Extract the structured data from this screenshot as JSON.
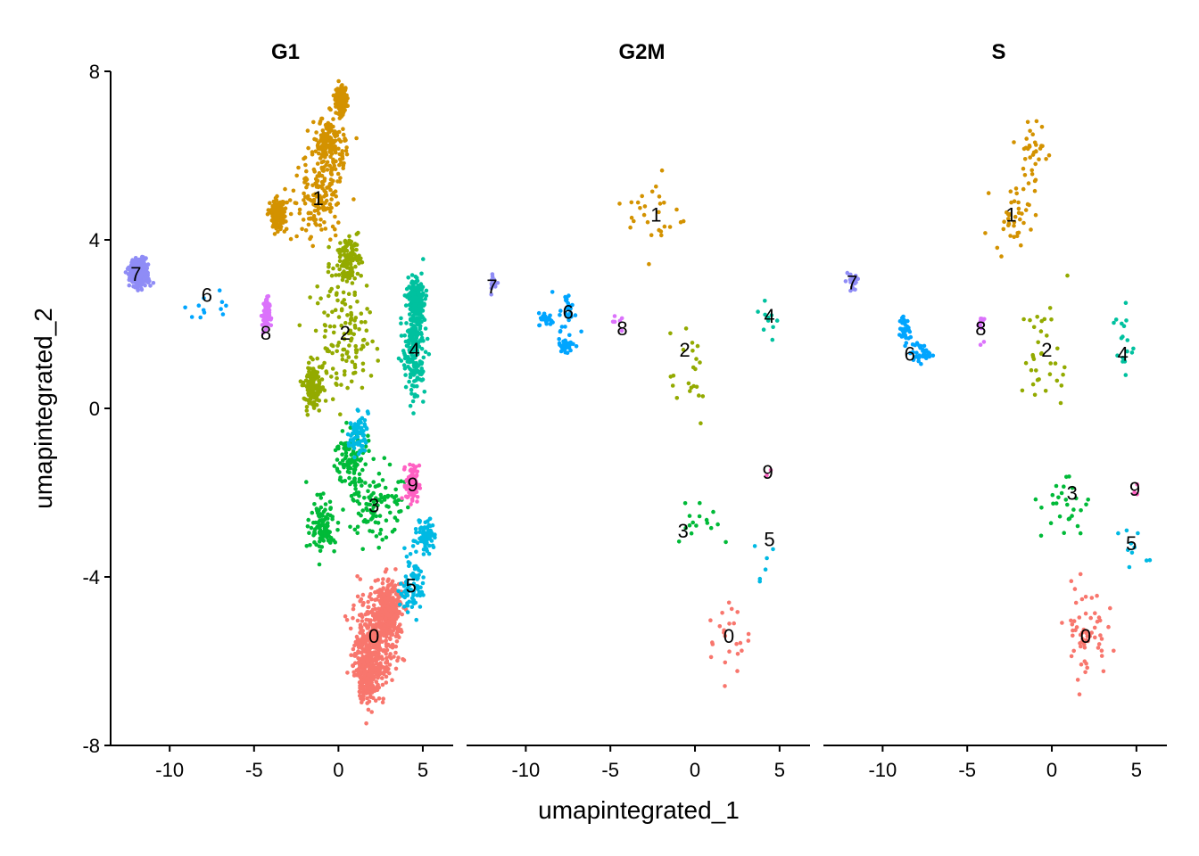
{
  "chart_data": {
    "type": "scatter",
    "xlabel": "umapintegrated_1",
    "ylabel": "umapintegrated_2",
    "xlim": [
      -13.5,
      6.8
    ],
    "ylim": [
      -8.0,
      8.0
    ],
    "x_ticks": [
      -10,
      -5,
      0,
      5
    ],
    "x_tick_labels": [
      "-10",
      "-5",
      "0",
      "5"
    ],
    "y_ticks": [
      -8,
      -4,
      0,
      4,
      8
    ],
    "y_tick_labels": [
      "-8",
      "-4",
      "0",
      "4",
      "8"
    ],
    "grid": false,
    "cluster_colors": {
      "0": "#F8766D",
      "1": "#D39200",
      "2": "#93AA00",
      "3": "#00BA38",
      "4": "#00C19F",
      "5": "#00B9E3",
      "6": "#00A5FF",
      "7": "#8F8CF6",
      "8": "#DB72FB",
      "9": "#FF61C3"
    },
    "panels": [
      {
        "title": "G1",
        "clusters": [
          {
            "id": "0",
            "label_x": 2.1,
            "label_y": -5.4,
            "n": 900,
            "blobs": [
              [
                2.1,
                -5.4,
                1.2,
                0.9
              ],
              [
                1.8,
                -6.2,
                0.8,
                0.7
              ],
              [
                3.0,
                -4.8,
                0.7,
                0.6
              ]
            ]
          },
          {
            "id": "1",
            "label_x": -1.2,
            "label_y": 5.0,
            "n": 650,
            "blobs": [
              [
                -1.2,
                5.0,
                1.4,
                0.9
              ],
              [
                -0.5,
                6.3,
                0.8,
                0.6
              ],
              [
                -3.6,
                4.6,
                0.4,
                0.3
              ],
              [
                0.2,
                7.3,
                0.3,
                0.3
              ]
            ]
          },
          {
            "id": "2",
            "label_x": 0.4,
            "label_y": 1.8,
            "n": 380,
            "blobs": [
              [
                0.4,
                1.8,
                1.6,
                1.2
              ],
              [
                0.6,
                3.5,
                0.7,
                0.5
              ],
              [
                -1.5,
                0.5,
                0.5,
                0.5
              ]
            ]
          },
          {
            "id": "3",
            "label_x": 2.1,
            "label_y": -2.3,
            "n": 320,
            "blobs": [
              [
                2.1,
                -2.3,
                1.4,
                0.9
              ],
              [
                0.8,
                -1.2,
                0.9,
                0.6
              ],
              [
                -1.0,
                -2.8,
                0.7,
                0.6
              ]
            ]
          },
          {
            "id": "4",
            "label_x": 4.5,
            "label_y": 1.4,
            "n": 420,
            "blobs": [
              [
                4.5,
                1.4,
                0.6,
                1.0
              ],
              [
                4.6,
                2.6,
                0.4,
                0.4
              ]
            ]
          },
          {
            "id": "5",
            "label_x": 4.3,
            "label_y": -4.2,
            "n": 220,
            "blobs": [
              [
                4.3,
                -4.2,
                0.6,
                0.7
              ],
              [
                5.2,
                -3.0,
                0.5,
                0.4
              ],
              [
                1.2,
                -0.6,
                0.5,
                0.4
              ]
            ]
          },
          {
            "id": "6",
            "label_x": -7.8,
            "label_y": 2.7,
            "n": 12,
            "blobs": [
              [
                -7.8,
                2.5,
                1.2,
                0.5
              ]
            ]
          },
          {
            "id": "7",
            "label_x": -12.0,
            "label_y": 3.2,
            "n": 320,
            "blobs": [
              [
                -11.8,
                3.2,
                0.5,
                0.3
              ]
            ]
          },
          {
            "id": "8",
            "label_x": -4.3,
            "label_y": 1.8,
            "n": 70,
            "blobs": [
              [
                -4.3,
                2.2,
                0.2,
                0.4
              ]
            ]
          },
          {
            "id": "9",
            "label_x": 4.4,
            "label_y": -1.8,
            "n": 90,
            "blobs": [
              [
                4.4,
                -1.8,
                0.35,
                0.4
              ]
            ]
          }
        ]
      },
      {
        "title": "G2M",
        "clusters": [
          {
            "id": "0",
            "label_x": 2.0,
            "label_y": -5.4,
            "n": 24,
            "blobs": [
              [
                2.0,
                -5.4,
                1.2,
                0.9
              ]
            ]
          },
          {
            "id": "1",
            "label_x": -2.3,
            "label_y": 4.6,
            "n": 28,
            "blobs": [
              [
                -2.3,
                4.6,
                1.5,
                0.9
              ]
            ]
          },
          {
            "id": "2",
            "label_x": -0.6,
            "label_y": 1.4,
            "n": 22,
            "blobs": [
              [
                -0.6,
                1.0,
                1.5,
                1.3
              ]
            ]
          },
          {
            "id": "3",
            "label_x": -0.7,
            "label_y": -2.9,
            "n": 16,
            "blobs": [
              [
                0.3,
                -2.6,
                2.0,
                0.6
              ]
            ]
          },
          {
            "id": "4",
            "label_x": 4.4,
            "label_y": 2.2,
            "n": 10,
            "blobs": [
              [
                4.3,
                2.0,
                0.6,
                0.6
              ]
            ]
          },
          {
            "id": "5",
            "label_x": 4.4,
            "label_y": -3.1,
            "n": 6,
            "blobs": [
              [
                4.2,
                -3.5,
                0.6,
                0.8
              ]
            ]
          },
          {
            "id": "6",
            "label_x": -7.5,
            "label_y": 2.3,
            "n": 85,
            "blobs": [
              [
                -7.5,
                2.3,
                0.5,
                0.4
              ],
              [
                -7.6,
                1.5,
                0.5,
                0.2
              ],
              [
                -8.8,
                2.1,
                0.4,
                0.15
              ]
            ]
          },
          {
            "id": "7",
            "label_x": -12.0,
            "label_y": 2.9,
            "n": 12,
            "blobs": [
              [
                -11.9,
                3.0,
                0.25,
                0.25
              ]
            ]
          },
          {
            "id": "8",
            "label_x": -4.3,
            "label_y": 1.9,
            "n": 6,
            "blobs": [
              [
                -4.5,
                2.1,
                0.5,
                0.25
              ]
            ]
          },
          {
            "id": "9",
            "label_x": 4.3,
            "label_y": -1.5,
            "n": 2,
            "blobs": [
              [
                4.3,
                -1.5,
                0.2,
                0.2
              ]
            ]
          }
        ]
      },
      {
        "title": "S",
        "clusters": [
          {
            "id": "0",
            "label_x": 2.0,
            "label_y": -5.4,
            "n": 60,
            "blobs": [
              [
                2.0,
                -5.3,
                1.1,
                1.0
              ]
            ]
          },
          {
            "id": "1",
            "label_x": -2.4,
            "label_y": 4.6,
            "n": 75,
            "blobs": [
              [
                -2.4,
                4.6,
                1.0,
                0.6
              ],
              [
                -1.2,
                6.0,
                0.9,
                0.8
              ]
            ]
          },
          {
            "id": "2",
            "label_x": -0.3,
            "label_y": 1.4,
            "n": 35,
            "blobs": [
              [
                -0.3,
                1.2,
                1.4,
                1.3
              ]
            ]
          },
          {
            "id": "3",
            "label_x": 1.2,
            "label_y": -2.0,
            "n": 28,
            "blobs": [
              [
                0.8,
                -2.3,
                1.3,
                0.8
              ]
            ]
          },
          {
            "id": "4",
            "label_x": 4.2,
            "label_y": 1.3,
            "n": 18,
            "blobs": [
              [
                4.2,
                1.6,
                0.6,
                0.8
              ]
            ]
          },
          {
            "id": "5",
            "label_x": 4.7,
            "label_y": -3.2,
            "n": 10,
            "blobs": [
              [
                4.7,
                -3.4,
                0.8,
                0.6
              ]
            ]
          },
          {
            "id": "6",
            "label_x": -8.4,
            "label_y": 1.3,
            "n": 70,
            "blobs": [
              [
                -7.8,
                1.3,
                0.5,
                0.2
              ],
              [
                -8.7,
                1.9,
                0.3,
                0.3
              ]
            ]
          },
          {
            "id": "7",
            "label_x": -11.8,
            "label_y": 3.0,
            "n": 25,
            "blobs": [
              [
                -11.8,
                3.0,
                0.35,
                0.3
              ]
            ]
          },
          {
            "id": "8",
            "label_x": -4.2,
            "label_y": 1.9,
            "n": 18,
            "blobs": [
              [
                -4.2,
                2.0,
                0.15,
                0.3
              ]
            ]
          },
          {
            "id": "9",
            "label_x": 4.9,
            "label_y": -1.9,
            "n": 3,
            "blobs": [
              [
                4.9,
                -1.9,
                0.15,
                0.15
              ]
            ]
          }
        ]
      }
    ]
  }
}
